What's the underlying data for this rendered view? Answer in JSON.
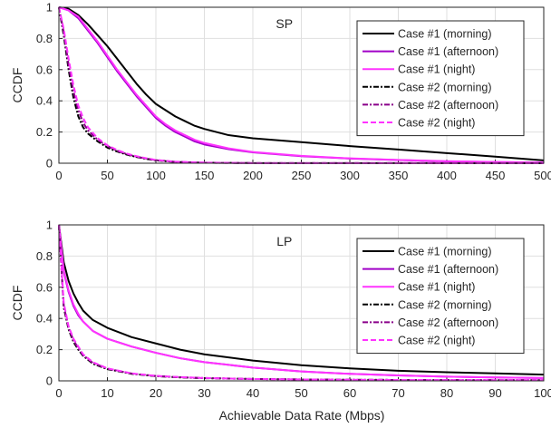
{
  "figure": {
    "xlabel": "Achievable Data Rate (Mbps)"
  },
  "chart_data": [
    {
      "type": "line",
      "title": "SP",
      "xlabel": "",
      "ylabel": "CCDF",
      "xlim": [
        0,
        500
      ],
      "ylim": [
        0,
        1
      ],
      "xticks": [
        "0",
        "50",
        "100",
        "150",
        "200",
        "250",
        "300",
        "350",
        "400",
        "450",
        "500"
      ],
      "yticks": [
        "0",
        "0.2",
        "0.4",
        "0.6",
        "0.8",
        "1"
      ],
      "grid": true,
      "legend": "top-right",
      "series": [
        {
          "name": "Case #1 (morning)",
          "color": "#000000",
          "dash": "solid",
          "x": [
            0,
            10,
            20,
            30,
            40,
            50,
            60,
            70,
            80,
            90,
            100,
            110,
            120,
            130,
            140,
            150,
            175,
            200,
            250,
            300,
            350,
            400,
            450,
            500
          ],
          "y": [
            1.0,
            0.99,
            0.95,
            0.89,
            0.82,
            0.75,
            0.67,
            0.59,
            0.51,
            0.44,
            0.38,
            0.34,
            0.3,
            0.27,
            0.24,
            0.22,
            0.18,
            0.16,
            0.135,
            0.11,
            0.088,
            0.065,
            0.042,
            0.018
          ]
        },
        {
          "name": "Case #1 (afternoon)",
          "color": "#a000c8",
          "dash": "solid",
          "x": [
            0,
            10,
            20,
            30,
            40,
            50,
            60,
            70,
            80,
            90,
            100,
            110,
            120,
            130,
            140,
            150,
            175,
            200,
            250,
            300,
            350,
            400,
            450,
            500
          ],
          "y": [
            1.0,
            0.98,
            0.93,
            0.85,
            0.77,
            0.68,
            0.59,
            0.51,
            0.43,
            0.36,
            0.29,
            0.24,
            0.2,
            0.17,
            0.14,
            0.12,
            0.09,
            0.07,
            0.045,
            0.03,
            0.02,
            0.012,
            0.007,
            0.004
          ]
        },
        {
          "name": "Case #1 (night)",
          "color": "#ff33ff",
          "dash": "solid",
          "x": [
            0,
            10,
            20,
            30,
            40,
            50,
            60,
            70,
            80,
            90,
            100,
            110,
            120,
            130,
            140,
            150,
            175,
            200,
            250,
            300,
            350,
            400,
            450,
            500
          ],
          "y": [
            1.0,
            0.98,
            0.94,
            0.86,
            0.78,
            0.69,
            0.6,
            0.52,
            0.44,
            0.37,
            0.3,
            0.25,
            0.21,
            0.18,
            0.15,
            0.13,
            0.095,
            0.072,
            0.047,
            0.031,
            0.021,
            0.013,
            0.008,
            0.004
          ]
        },
        {
          "name": "Case #2 (morning)",
          "color": "#000000",
          "dash": "dashdot",
          "x": [
            0,
            5,
            10,
            15,
            20,
            25,
            30,
            40,
            50,
            60,
            70,
            80,
            90,
            100,
            120,
            150,
            200,
            500
          ],
          "y": [
            1.0,
            0.82,
            0.6,
            0.42,
            0.3,
            0.23,
            0.19,
            0.14,
            0.1,
            0.075,
            0.055,
            0.04,
            0.028,
            0.018,
            0.008,
            0.003,
            0.001,
            0.0
          ]
        },
        {
          "name": "Case #2 (afternoon)",
          "color": "#8a008a",
          "dash": "dashdot",
          "x": [
            0,
            5,
            10,
            15,
            20,
            25,
            30,
            40,
            50,
            60,
            70,
            80,
            90,
            100,
            120,
            150,
            200,
            500
          ],
          "y": [
            1.0,
            0.84,
            0.63,
            0.46,
            0.34,
            0.26,
            0.21,
            0.15,
            0.11,
            0.08,
            0.058,
            0.042,
            0.03,
            0.02,
            0.009,
            0.003,
            0.001,
            0.0
          ]
        },
        {
          "name": "Case #2 (night)",
          "color": "#ff33ff",
          "dash": "dashed",
          "x": [
            0,
            5,
            10,
            15,
            20,
            25,
            30,
            40,
            50,
            60,
            70,
            80,
            90,
            100,
            120,
            150,
            200,
            500
          ],
          "y": [
            1.0,
            0.86,
            0.67,
            0.5,
            0.37,
            0.29,
            0.23,
            0.16,
            0.115,
            0.085,
            0.062,
            0.045,
            0.032,
            0.021,
            0.01,
            0.004,
            0.001,
            0.0
          ]
        }
      ]
    },
    {
      "type": "line",
      "title": "LP",
      "xlabel": "Achievable Data Rate (Mbps)",
      "ylabel": "CCDF",
      "xlim": [
        0,
        100
      ],
      "ylim": [
        0,
        1
      ],
      "xticks": [
        "0",
        "10",
        "20",
        "30",
        "40",
        "50",
        "60",
        "70",
        "80",
        "90",
        "100"
      ],
      "yticks": [
        "0",
        "0.2",
        "0.4",
        "0.6",
        "0.8",
        "1"
      ],
      "grid": true,
      "legend": "top-right",
      "series": [
        {
          "name": "Case #1 (morning)",
          "color": "#000000",
          "dash": "solid",
          "x": [
            0,
            1,
            2,
            3,
            4,
            5,
            7,
            10,
            15,
            20,
            25,
            30,
            40,
            50,
            60,
            70,
            80,
            90,
            100
          ],
          "y": [
            1.0,
            0.76,
            0.64,
            0.56,
            0.5,
            0.45,
            0.39,
            0.34,
            0.28,
            0.24,
            0.2,
            0.17,
            0.13,
            0.1,
            0.08,
            0.065,
            0.055,
            0.048,
            0.04
          ]
        },
        {
          "name": "Case #1 (afternoon)",
          "color": "#a000c8",
          "dash": "solid",
          "x": [
            0,
            1,
            2,
            3,
            4,
            5,
            7,
            10,
            15,
            20,
            25,
            30,
            40,
            50,
            60,
            70,
            80,
            90,
            100
          ],
          "y": [
            1.0,
            0.7,
            0.57,
            0.48,
            0.42,
            0.38,
            0.32,
            0.27,
            0.22,
            0.18,
            0.145,
            0.12,
            0.085,
            0.06,
            0.045,
            0.035,
            0.027,
            0.022,
            0.018
          ]
        },
        {
          "name": "Case #1 (night)",
          "color": "#ff33ff",
          "dash": "solid",
          "x": [
            0,
            1,
            2,
            3,
            4,
            5,
            7,
            10,
            15,
            20,
            25,
            30,
            40,
            50,
            60,
            70,
            80,
            90,
            100
          ],
          "y": [
            1.0,
            0.71,
            0.58,
            0.49,
            0.43,
            0.38,
            0.32,
            0.27,
            0.22,
            0.18,
            0.145,
            0.12,
            0.085,
            0.06,
            0.045,
            0.035,
            0.027,
            0.022,
            0.018
          ]
        },
        {
          "name": "Case #2 (morning)",
          "color": "#000000",
          "dash": "dashdot",
          "x": [
            0,
            1,
            2,
            3,
            4,
            5,
            7,
            10,
            15,
            20,
            25,
            30,
            40,
            50,
            60,
            70,
            80,
            90,
            100
          ],
          "y": [
            1.0,
            0.47,
            0.33,
            0.25,
            0.2,
            0.16,
            0.11,
            0.075,
            0.045,
            0.03,
            0.022,
            0.017,
            0.012,
            0.009,
            0.007,
            0.006,
            0.005,
            0.004,
            0.004
          ]
        },
        {
          "name": "Case #2 (afternoon)",
          "color": "#8a008a",
          "dash": "dashdot",
          "x": [
            0,
            1,
            2,
            3,
            4,
            5,
            7,
            10,
            15,
            20,
            25,
            30,
            40,
            50,
            60,
            70,
            80,
            90,
            100
          ],
          "y": [
            1.0,
            0.48,
            0.34,
            0.26,
            0.21,
            0.165,
            0.115,
            0.078,
            0.047,
            0.031,
            0.023,
            0.018,
            0.012,
            0.009,
            0.007,
            0.006,
            0.005,
            0.004,
            0.004
          ]
        },
        {
          "name": "Case #2 (night)",
          "color": "#ff33ff",
          "dash": "dashed",
          "x": [
            0,
            1,
            2,
            3,
            4,
            5,
            7,
            10,
            15,
            20,
            25,
            30,
            40,
            50,
            60,
            70,
            80,
            90,
            100
          ],
          "y": [
            1.0,
            0.5,
            0.35,
            0.27,
            0.22,
            0.17,
            0.12,
            0.08,
            0.048,
            0.032,
            0.024,
            0.018,
            0.012,
            0.009,
            0.007,
            0.006,
            0.005,
            0.004,
            0.004
          ]
        }
      ]
    }
  ]
}
